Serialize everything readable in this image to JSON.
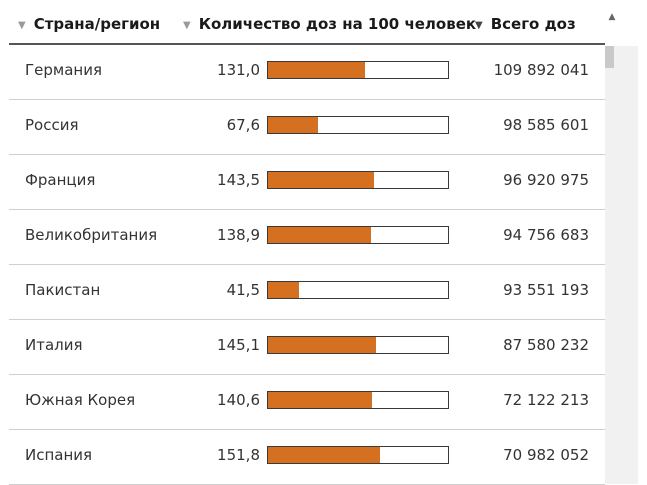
{
  "header": {
    "country_label": "Страна/регион",
    "per100_label": "Количество доз на 100 человек",
    "total_label": "Всего доз"
  },
  "rows": [
    {
      "country": "Германия",
      "per100": "131,0",
      "bar_fraction": 0.54,
      "total": "109 892 041"
    },
    {
      "country": "Россия",
      "per100": "67,6",
      "bar_fraction": 0.28,
      "total": "98 585 601"
    },
    {
      "country": "Франция",
      "per100": "143,5",
      "bar_fraction": 0.59,
      "total": "96 920 975"
    },
    {
      "country": "Великобритания",
      "per100": "138,9",
      "bar_fraction": 0.57,
      "total": "94 756 683"
    },
    {
      "country": "Пакистан",
      "per100": "41,5",
      "bar_fraction": 0.17,
      "total": "93 551 193"
    },
    {
      "country": "Италия",
      "per100": "145,1",
      "bar_fraction": 0.6,
      "total": "87 580 232"
    },
    {
      "country": "Южная Корея",
      "per100": "140,6",
      "bar_fraction": 0.58,
      "total": "72 122 213"
    },
    {
      "country": "Испания",
      "per100": "151,8",
      "bar_fraction": 0.62,
      "total": "70 982 052"
    }
  ],
  "colors": {
    "bar_fill": "#d4701f",
    "row_divider": "#cfcfcf",
    "header_divider": "#555555"
  },
  "icons": {
    "sort_inactive": "triangle-down",
    "sort_active": "triangle-down-dark",
    "scroll_up": "triangle-up"
  }
}
